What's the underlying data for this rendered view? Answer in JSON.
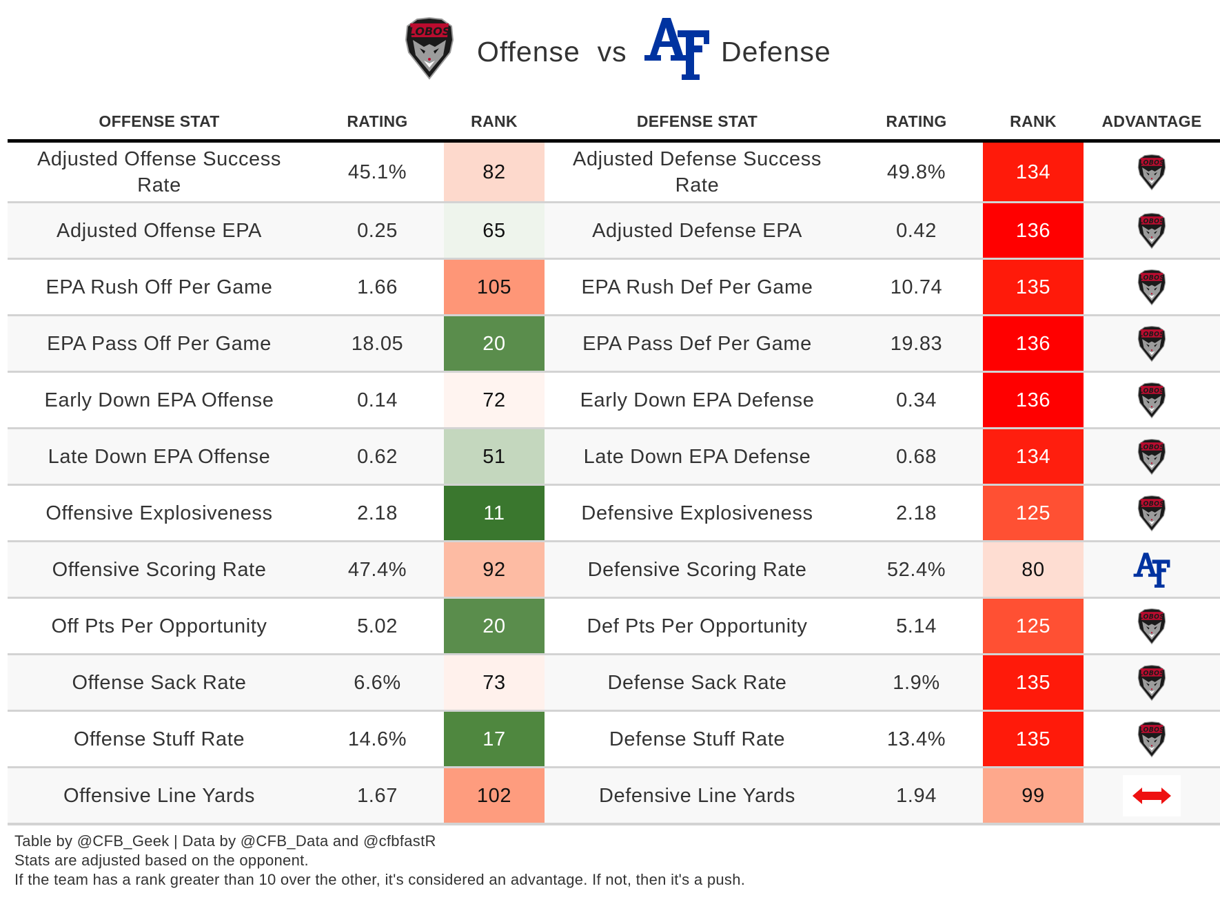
{
  "title": {
    "offense_team_logo": "new-mexico-lobos-logo",
    "offense_label": "Offense",
    "vs_label": "vs",
    "defense_team_logo": "air-force-af-logo",
    "defense_label": "Defense"
  },
  "colors": {
    "af_blue": "#0033A0",
    "lobo_red": "#BA0C2F",
    "push_red": "#EE1111",
    "header_border": "#000000",
    "row_divider": "#D3D3D3",
    "row_alt_bg": "#F8F8F8"
  },
  "columns": {
    "offense_stat": "OFFENSE STAT",
    "offense_rating": "RATING",
    "offense_rank": "RANK",
    "defense_stat": "DEFENSE STAT",
    "defense_rating": "RATING",
    "defense_rank": "RANK",
    "advantage": "ADVANTAGE"
  },
  "rows": [
    {
      "off_stat": "Adjusted Offense Success Rate",
      "off_rating": "45.1%",
      "off_rank": "82",
      "off_rank_bg": "#FDD9CC",
      "off_rank_light": false,
      "def_stat": "Adjusted Defense Success Rate",
      "def_rating": "49.8%",
      "def_rank": "134",
      "def_rank_bg": "#FF1A0A",
      "def_rank_light": true,
      "advantage": "lobos"
    },
    {
      "off_stat": "Adjusted Offense EPA",
      "off_rating": "0.25",
      "off_rank": "65",
      "off_rank_bg": "#EEF4EC",
      "off_rank_light": false,
      "def_stat": "Adjusted Defense EPA",
      "def_rating": "0.42",
      "def_rank": "136",
      "def_rank_bg": "#FF0000",
      "def_rank_light": true,
      "advantage": "lobos"
    },
    {
      "off_stat": "EPA Rush Off Per Game",
      "off_rating": "1.66",
      "off_rank": "105",
      "off_rank_bg": "#FE9677",
      "off_rank_light": false,
      "def_stat": "EPA Rush Def Per Game",
      "def_rating": "10.74",
      "def_rank": "135",
      "def_rank_bg": "#FF1A0A",
      "def_rank_light": true,
      "advantage": "lobos"
    },
    {
      "off_stat": "EPA Pass Off Per Game",
      "off_rating": "18.05",
      "off_rank": "20",
      "off_rank_bg": "#5A8D4C",
      "off_rank_light": true,
      "def_stat": "EPA Pass Def Per Game",
      "def_rating": "19.83",
      "def_rank": "136",
      "def_rank_bg": "#FF0000",
      "def_rank_light": true,
      "advantage": "lobos"
    },
    {
      "off_stat": "Early Down EPA Offense",
      "off_rating": "0.14",
      "off_rank": "72",
      "off_rank_bg": "#FFF4F0",
      "off_rank_light": false,
      "def_stat": "Early Down EPA Defense",
      "def_rating": "0.34",
      "def_rank": "136",
      "def_rank_bg": "#FF0000",
      "def_rank_light": true,
      "advantage": "lobos"
    },
    {
      "off_stat": "Late Down EPA Offense",
      "off_rating": "0.62",
      "off_rank": "51",
      "off_rank_bg": "#C4D7BE",
      "off_rank_light": false,
      "def_stat": "Late Down EPA Defense",
      "def_rating": "0.68",
      "def_rank": "134",
      "def_rank_bg": "#FF1E0E",
      "def_rank_light": true,
      "advantage": "lobos"
    },
    {
      "off_stat": "Offensive Explosiveness",
      "off_rating": "2.18",
      "off_rank": "11",
      "off_rank_bg": "#3A772E",
      "off_rank_light": true,
      "def_stat": "Defensive Explosiveness",
      "def_rating": "2.18",
      "def_rank": "125",
      "def_rank_bg": "#FF5033",
      "def_rank_light": true,
      "advantage": "lobos"
    },
    {
      "off_stat": "Offensive Scoring Rate",
      "off_rating": "47.4%",
      "off_rank": "92",
      "off_rank_bg": "#FDBBA3",
      "off_rank_light": false,
      "def_stat": "Defensive Scoring Rate",
      "def_rating": "52.4%",
      "def_rank": "80",
      "def_rank_bg": "#FEDDD2",
      "def_rank_light": false,
      "advantage": "af"
    },
    {
      "off_stat": "Off Pts Per Opportunity",
      "off_rating": "5.02",
      "off_rank": "20",
      "off_rank_bg": "#5A8D4C",
      "off_rank_light": true,
      "def_stat": "Def Pts Per Opportunity",
      "def_rating": "5.14",
      "def_rank": "125",
      "def_rank_bg": "#FF5033",
      "def_rank_light": true,
      "advantage": "lobos"
    },
    {
      "off_stat": "Offense Sack Rate",
      "off_rating": "6.6%",
      "off_rank": "73",
      "off_rank_bg": "#FFF1EC",
      "off_rank_light": false,
      "def_stat": "Defense Sack Rate",
      "def_rating": "1.9%",
      "def_rank": "135",
      "def_rank_bg": "#FF1A0A",
      "def_rank_light": true,
      "advantage": "lobos"
    },
    {
      "off_stat": "Offense Stuff Rate",
      "off_rating": "14.6%",
      "off_rank": "17",
      "off_rank_bg": "#4F873F",
      "off_rank_light": true,
      "def_stat": "Defense Stuff Rate",
      "def_rating": "13.4%",
      "def_rank": "135",
      "def_rank_bg": "#FF1A0A",
      "def_rank_light": true,
      "advantage": "lobos"
    },
    {
      "off_stat": "Offensive Line Yards",
      "off_rating": "1.67",
      "off_rank": "102",
      "off_rank_bg": "#FE9C7E",
      "off_rank_light": false,
      "def_stat": "Defensive Line Yards",
      "def_rating": "1.94",
      "def_rank": "99",
      "def_rank_bg": "#FEA88C",
      "def_rank_light": false,
      "advantage": "push"
    }
  ],
  "footer": {
    "line1": "Table by @CFB_Geek | Data by @CFB_Data and @cfbfastR",
    "line2": "Stats are adjusted based on the opponent.",
    "line3": "If the team has a rank greater than 10 over the other, it's considered an advantage. If not, then it's a push."
  }
}
